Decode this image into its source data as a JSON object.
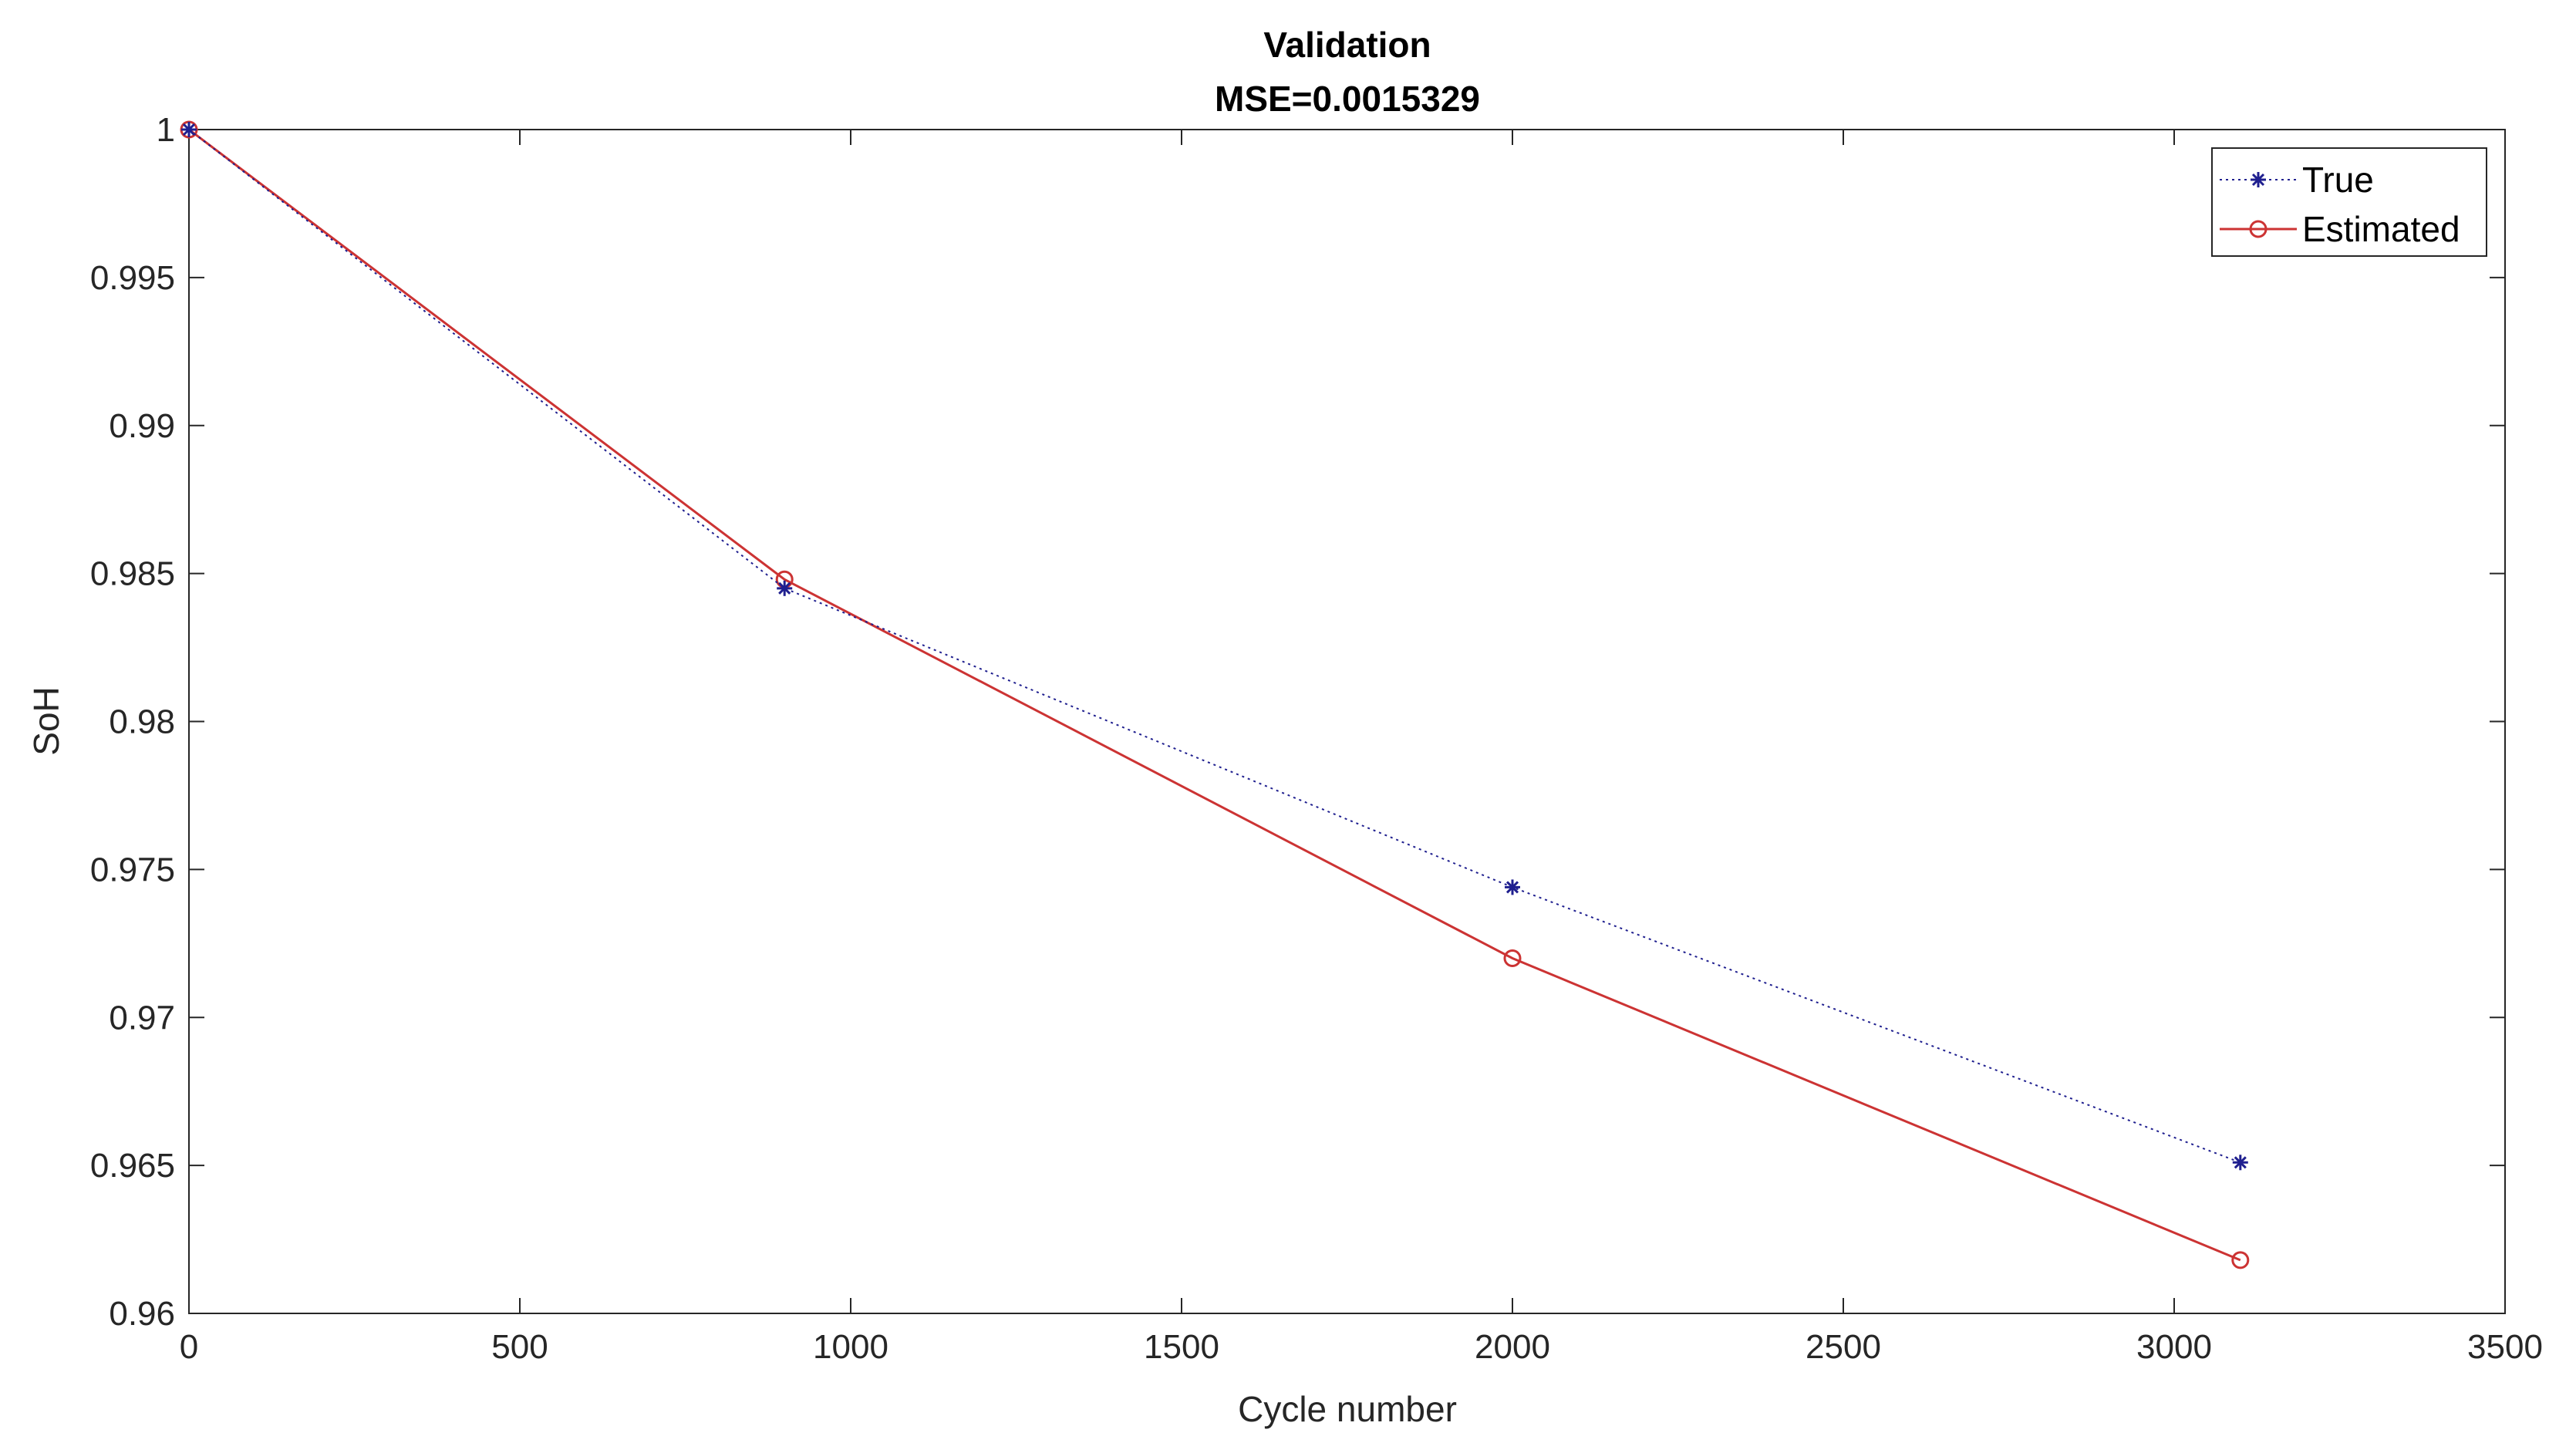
{
  "chart_data": {
    "type": "line",
    "title": "Validation",
    "subtitle": "MSE=0.0015329",
    "xlabel": "Cycle number",
    "ylabel": "SoH",
    "xlim": [
      0,
      3500
    ],
    "ylim": [
      0.96,
      1.0
    ],
    "xticks": [
      0,
      500,
      1000,
      1500,
      2000,
      2500,
      3000,
      3500
    ],
    "xtick_labels": [
      "0",
      "500",
      "1000",
      "1500",
      "2000",
      "2500",
      "3000",
      "3500"
    ],
    "yticks": [
      0.96,
      0.965,
      0.97,
      0.975,
      0.98,
      0.985,
      0.99,
      0.995,
      1.0
    ],
    "ytick_labels": [
      "0.96",
      "0.965",
      "0.97",
      "0.975",
      "0.98",
      "0.985",
      "0.99",
      "0.995",
      "1"
    ],
    "grid": false,
    "legend_position": "top-right",
    "series": [
      {
        "name": "True",
        "color": "#1f1f8f",
        "line_style": "dotted",
        "marker": "asterisk",
        "x": [
          0,
          900,
          2000,
          3100
        ],
        "y": [
          1.0,
          0.9845,
          0.9744,
          0.9651
        ]
      },
      {
        "name": "Estimated",
        "color": "#cc3333",
        "line_style": "solid",
        "marker": "circle",
        "x": [
          0,
          900,
          2000,
          3100
        ],
        "y": [
          1.0,
          0.9848,
          0.972,
          0.9618
        ]
      }
    ]
  }
}
